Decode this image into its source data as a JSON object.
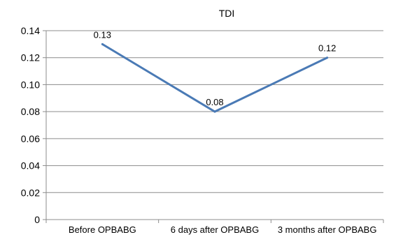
{
  "chart_data": {
    "type": "line",
    "title": "TDI",
    "xlabel": "",
    "ylabel": "",
    "categories": [
      "Before OPBABG",
      "6 days after OPBABG",
      "3 months after OPBABG"
    ],
    "series": [
      {
        "values": [
          0.13,
          0.08,
          0.12
        ],
        "labels": [
          "0.13",
          "0.08",
          "0.12"
        ],
        "color": "#4a7ab5"
      }
    ],
    "ylim": [
      0,
      0.14
    ],
    "yticks": [
      0,
      0.02,
      0.04,
      0.06,
      0.08,
      0.1,
      0.12,
      0.14
    ],
    "ytick_labels": [
      "0",
      "0.02",
      "0.04",
      "0.06",
      "0.08",
      "0.10",
      "0.12",
      "0.14"
    ],
    "grid": true,
    "legend": "none",
    "colors": {
      "grid": "#8c8c8c",
      "axis": "#8c8c8c"
    }
  }
}
